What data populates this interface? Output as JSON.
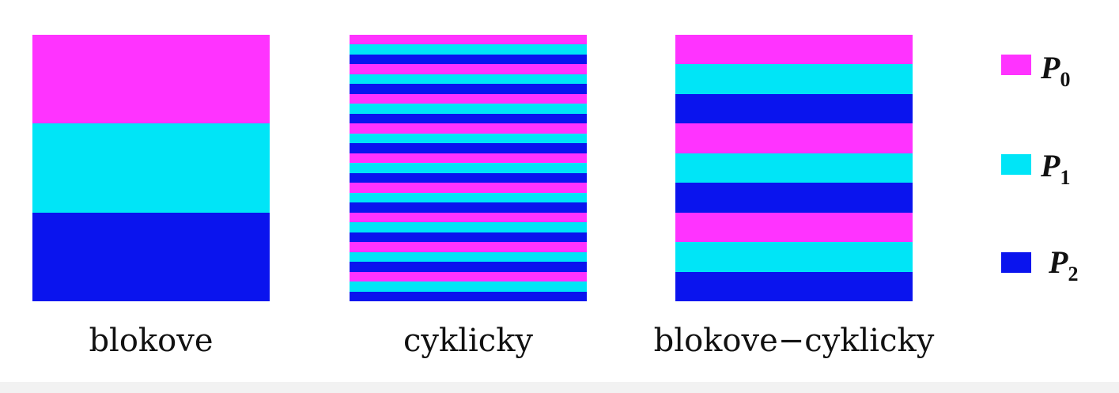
{
  "colors": {
    "P0": "#ff33ff",
    "P1": "#00e5f7",
    "P2": "#0a14ee"
  },
  "panels": [
    {
      "name": "blokove",
      "caption": "blokove",
      "rows": [
        "P0",
        "P1",
        "P2"
      ]
    },
    {
      "name": "cyklicky",
      "caption": "cyklicky",
      "rows": [
        "P0",
        "P1",
        "P2",
        "P0",
        "P1",
        "P2",
        "P0",
        "P1",
        "P2",
        "P0",
        "P1",
        "P2",
        "P0",
        "P1",
        "P2",
        "P0",
        "P1",
        "P2",
        "P0",
        "P1",
        "P2",
        "P0",
        "P1",
        "P2",
        "P0",
        "P1",
        "P2"
      ]
    },
    {
      "name": "blokove-cyklicky",
      "caption": "blokove−cyklicky",
      "rows": [
        "P0",
        "P1",
        "P2",
        "P0",
        "P1",
        "P2",
        "P0",
        "P1",
        "P2"
      ]
    }
  ],
  "legend": [
    {
      "id": "P0",
      "letter": "P",
      "sub": "0"
    },
    {
      "id": "P1",
      "letter": "P",
      "sub": "1"
    },
    {
      "id": "P2",
      "letter": "P",
      "sub": "2"
    }
  ]
}
